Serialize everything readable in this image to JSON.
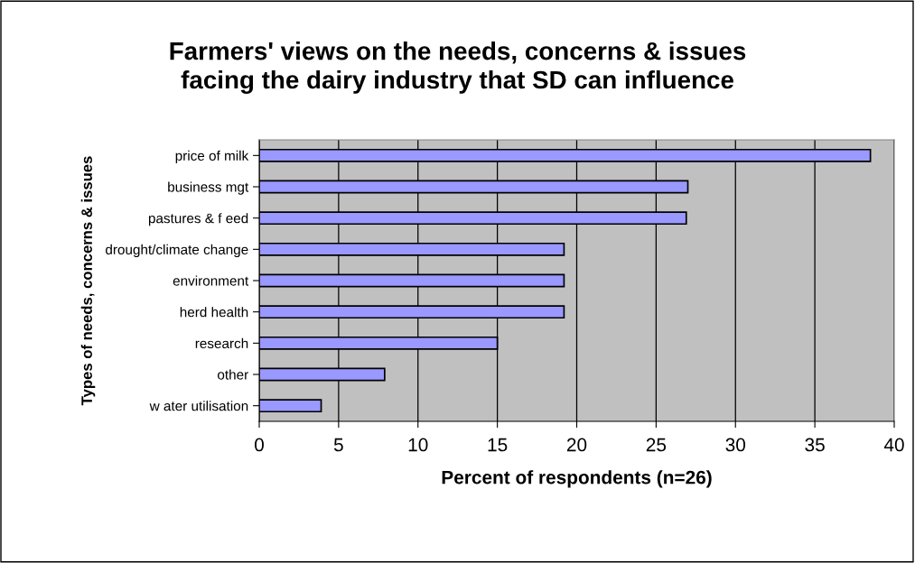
{
  "chart_data": {
    "type": "bar",
    "orientation": "horizontal",
    "title": "Farmers' views on the needs, concerns & issues\nfacing the dairy industry that SD can influence",
    "xlabel": "Percent of respondents (n=26)",
    "ylabel": "Types of needs, concerns & issues",
    "categories": [
      "price of milk",
      "business mgt",
      "pastures & f eed",
      "drought/climate change",
      "environment",
      "herd health",
      "research",
      "other",
      "w ater utilisation"
    ],
    "values": [
      38.5,
      27.0,
      26.9,
      19.2,
      19.2,
      19.2,
      15.0,
      7.9,
      3.9
    ],
    "color": "#9999ff",
    "xlim": [
      0,
      40
    ],
    "xticks": [
      0,
      5,
      10,
      15,
      20,
      25,
      30,
      35,
      40
    ],
    "grid": "x"
  }
}
